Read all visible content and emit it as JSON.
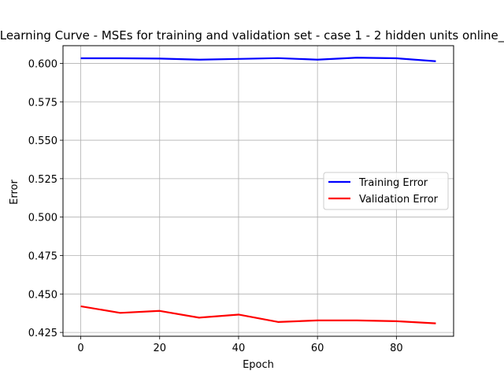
{
  "chart_data": {
    "type": "line",
    "title": "Learning Curve - MSEs for training and validation set - case 1 - 2 hidden units online_",
    "xlabel": "Epoch",
    "ylabel": "Error",
    "x": [
      0,
      10,
      20,
      30,
      40,
      50,
      60,
      70,
      80,
      90
    ],
    "xlim": [
      -4.5,
      94.5
    ],
    "ylim": [
      0.4225,
      0.6115
    ],
    "xticks": [
      0,
      20,
      40,
      60,
      80
    ],
    "xtick_labels": [
      "0",
      "20",
      "40",
      "60",
      "80"
    ],
    "yticks": [
      0.425,
      0.45,
      0.475,
      0.5,
      0.525,
      0.55,
      0.575,
      0.6
    ],
    "ytick_labels": [
      "0.425",
      "0.450",
      "0.475",
      "0.500",
      "0.525",
      "0.550",
      "0.575",
      "0.600"
    ],
    "grid": true,
    "legend_position": "center-right",
    "series": [
      {
        "name": "Training Error",
        "color": "#0000ff",
        "values": [
          0.6033,
          0.6033,
          0.6031,
          0.6024,
          0.6029,
          0.6034,
          0.6024,
          0.6037,
          0.6033,
          0.6014
        ]
      },
      {
        "name": "Validation Error",
        "color": "#ff0000",
        "values": [
          0.442,
          0.4377,
          0.439,
          0.4346,
          0.4366,
          0.4318,
          0.4328,
          0.4328,
          0.4323,
          0.4309
        ]
      }
    ]
  }
}
